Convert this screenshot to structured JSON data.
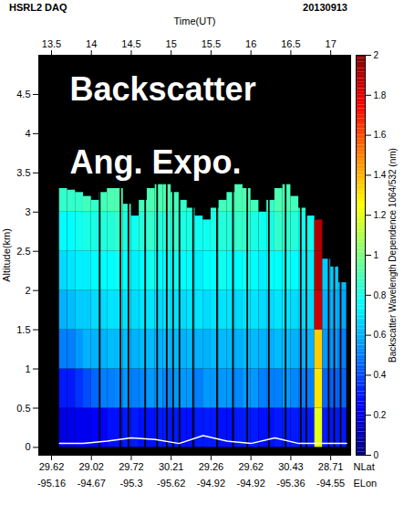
{
  "chart_data": {
    "type": "heatmap",
    "title": "HSRL2 DAQ",
    "date": "20130913",
    "x_label": "Time(UT)",
    "y_label": "Altitude(km)",
    "xlim": [
      13.34,
      17.25
    ],
    "xticks": [
      13.5,
      14,
      14.5,
      15,
      15.5,
      16,
      16.5,
      17
    ],
    "ylim": [
      -0.1,
      5
    ],
    "yticks": [
      0,
      0.5,
      1,
      1.5,
      2,
      2.5,
      3,
      3.5,
      4,
      4.5
    ],
    "nlat": {
      "label": "NLat",
      "ticks": [
        {
          "value": 13.5,
          "label": "29.62"
        },
        {
          "value": 14,
          "label": "29.02"
        },
        {
          "value": 14.5,
          "label": "29.72"
        },
        {
          "value": 15,
          "label": "30.21"
        },
        {
          "value": 15.5,
          "label": "29.26"
        },
        {
          "value": 16,
          "label": "29.62"
        },
        {
          "value": 16.5,
          "label": "30.43"
        },
        {
          "value": 17,
          "label": "28.71"
        }
      ]
    },
    "elon": {
      "label": "ELon",
      "ticks": [
        {
          "value": 13.5,
          "label": "-95.16"
        },
        {
          "value": 14,
          "label": "-94.67"
        },
        {
          "value": 14.5,
          "label": "-95.3"
        },
        {
          "value": 15,
          "label": "-95.62"
        },
        {
          "value": 15.5,
          "label": "-94.92"
        },
        {
          "value": 16,
          "label": "-94.92"
        },
        {
          "value": 16.5,
          "label": "-95.36"
        },
        {
          "value": 17,
          "label": "-94.55"
        }
      ]
    },
    "annotations": [
      "Backscatter",
      "Ang. Expo."
    ],
    "time_bins": [
      13.6,
      13.7,
      13.8,
      13.9,
      14.0,
      14.1,
      14.2,
      14.3,
      14.4,
      14.5,
      14.6,
      14.7,
      14.8,
      14.9,
      15.0,
      15.1,
      15.2,
      15.3,
      15.4,
      15.5,
      15.6,
      15.7,
      15.8,
      15.9,
      16.0,
      16.1,
      16.2,
      16.3,
      16.4,
      16.5,
      16.6,
      16.7,
      16.8,
      16.9,
      17.0,
      17.1,
      17.2
    ],
    "altitude_bins": [
      0,
      0.5,
      1,
      1.5,
      2,
      2.5,
      3,
      3.5
    ],
    "tops": [
      3.3,
      3.28,
      3.25,
      3.2,
      3.15,
      3.25,
      3.3,
      3.3,
      3.1,
      2.95,
      3.15,
      3.3,
      3.35,
      3.35,
      3.25,
      3.15,
      3.05,
      2.95,
      2.9,
      3.05,
      3.15,
      3.25,
      3.35,
      3.3,
      3.15,
      3.0,
      3.15,
      3.3,
      3.35,
      3.2,
      3.05,
      2.95,
      2.9,
      2.4,
      2.3,
      2.1
    ],
    "cells": [
      [
        0.2,
        0.2,
        0.22,
        0.22,
        0.25,
        0.25,
        0.28,
        0.28,
        0.3,
        0.3,
        0.28,
        0.28,
        0.3,
        0.3,
        0.3,
        0.28,
        0.28,
        0.3,
        0.3,
        0.3,
        0.28,
        0.28,
        0.3,
        0.3,
        0.3,
        0.28,
        0.28,
        0.3,
        0.3,
        0.3,
        0.3,
        0.3,
        1.2,
        0.3,
        0.3,
        0.3
      ],
      [
        0.3,
        0.3,
        0.35,
        0.4,
        0.45,
        0.5,
        0.5,
        0.52,
        0.55,
        0.5,
        0.52,
        0.55,
        0.55,
        0.52,
        0.55,
        0.55,
        0.55,
        0.5,
        0.55,
        0.55,
        0.55,
        0.55,
        0.52,
        0.55,
        0.55,
        0.5,
        0.5,
        0.5,
        0.55,
        0.52,
        0.5,
        0.5,
        1.3,
        0.45,
        0.45,
        0.45
      ],
      [
        0.5,
        0.5,
        0.55,
        0.6,
        0.6,
        0.6,
        0.62,
        0.62,
        0.62,
        0.6,
        0.62,
        0.62,
        0.6,
        0.62,
        0.62,
        0.6,
        0.62,
        0.6,
        0.6,
        0.62,
        0.62,
        0.62,
        0.6,
        0.62,
        0.62,
        0.6,
        0.6,
        0.62,
        0.62,
        0.6,
        0.6,
        0.6,
        1.35,
        0.55,
        0.55,
        0.5
      ],
      [
        0.6,
        0.62,
        0.65,
        0.65,
        0.68,
        0.68,
        0.7,
        0.7,
        0.7,
        0.68,
        0.7,
        0.7,
        0.68,
        0.7,
        0.7,
        0.68,
        0.7,
        0.7,
        0.68,
        0.7,
        0.7,
        0.7,
        0.68,
        0.7,
        0.7,
        0.68,
        0.68,
        0.7,
        0.7,
        0.68,
        0.68,
        0.68,
        1.85,
        0.6,
        0.6,
        0.58
      ],
      [
        0.68,
        0.7,
        0.72,
        0.72,
        0.75,
        0.75,
        0.75,
        0.78,
        0.75,
        0.72,
        0.75,
        0.78,
        0.75,
        0.75,
        0.78,
        0.75,
        0.75,
        0.72,
        0.75,
        0.75,
        0.78,
        0.75,
        0.75,
        0.78,
        0.75,
        0.72,
        0.75,
        0.75,
        0.78,
        0.75,
        0.72,
        0.72,
        1.9,
        0.65,
        0.65,
        0.62
      ],
      [
        0.75,
        0.75,
        0.78,
        0.8,
        0.8,
        0.82,
        0.82,
        0.85,
        0.8,
        0.78,
        0.82,
        0.85,
        0.82,
        0.82,
        0.85,
        0.8,
        0.8,
        0.78,
        0.78,
        0.8,
        0.82,
        0.82,
        0.85,
        0.85,
        0.8,
        0.78,
        0.8,
        0.85,
        0.85,
        0.82,
        0.78,
        0.78,
        1.9,
        null,
        null,
        null
      ],
      [
        0.85,
        0.85,
        0.85,
        0.88,
        0.85,
        0.88,
        0.9,
        0.9,
        0.85,
        null,
        0.88,
        0.9,
        0.9,
        0.9,
        0.88,
        0.85,
        0.85,
        null,
        null,
        0.85,
        0.88,
        0.88,
        0.9,
        0.9,
        0.88,
        null,
        0.85,
        0.9,
        0.9,
        0.88,
        0.85,
        null,
        null,
        null,
        null,
        null
      ]
    ],
    "gaps": [
      [
        14.1,
        14.12
      ],
      [
        14.36,
        14.38
      ],
      [
        14.46,
        14.48
      ],
      [
        14.67,
        14.69
      ],
      [
        14.82,
        14.84
      ],
      [
        14.94,
        14.96
      ],
      [
        15.02,
        15.04
      ],
      [
        15.1,
        15.12
      ],
      [
        15.27,
        15.29
      ],
      [
        15.57,
        15.59
      ],
      [
        15.77,
        15.79
      ],
      [
        15.95,
        15.97
      ],
      [
        16.22,
        16.24
      ],
      [
        16.43,
        16.45
      ],
      [
        16.62,
        16.64
      ],
      [
        16.69,
        16.71
      ],
      [
        16.97,
        16.99
      ],
      [
        17.04,
        17.06
      ],
      [
        17.12,
        17.14
      ]
    ],
    "series": [
      {
        "color": "#ffffff",
        "x": [
          13.6,
          13.9,
          14.2,
          14.5,
          14.8,
          15.1,
          15.4,
          15.7,
          16.0,
          16.3,
          16.6,
          16.9,
          17.2
        ],
        "values": [
          0.05,
          0.05,
          0.08,
          0.12,
          0.1,
          0.05,
          0.15,
          0.08,
          0.05,
          0.12,
          0.05,
          0.05,
          0.05
        ]
      }
    ],
    "colorbar": {
      "label": "Backscatter Wavelength Dependence 1064/532 (nm)",
      "range": [
        0,
        2
      ],
      "ticks": [
        0,
        0.2,
        0.4,
        0.6,
        0.8,
        1,
        1.2,
        1.4,
        1.6,
        1.8,
        2
      ],
      "colors": [
        "#00007f",
        "#0000ff",
        "#007fff",
        "#00ffff",
        "#7fff7f",
        "#ffff00",
        "#ff7f00",
        "#ff0000",
        "#7f0000"
      ]
    }
  }
}
